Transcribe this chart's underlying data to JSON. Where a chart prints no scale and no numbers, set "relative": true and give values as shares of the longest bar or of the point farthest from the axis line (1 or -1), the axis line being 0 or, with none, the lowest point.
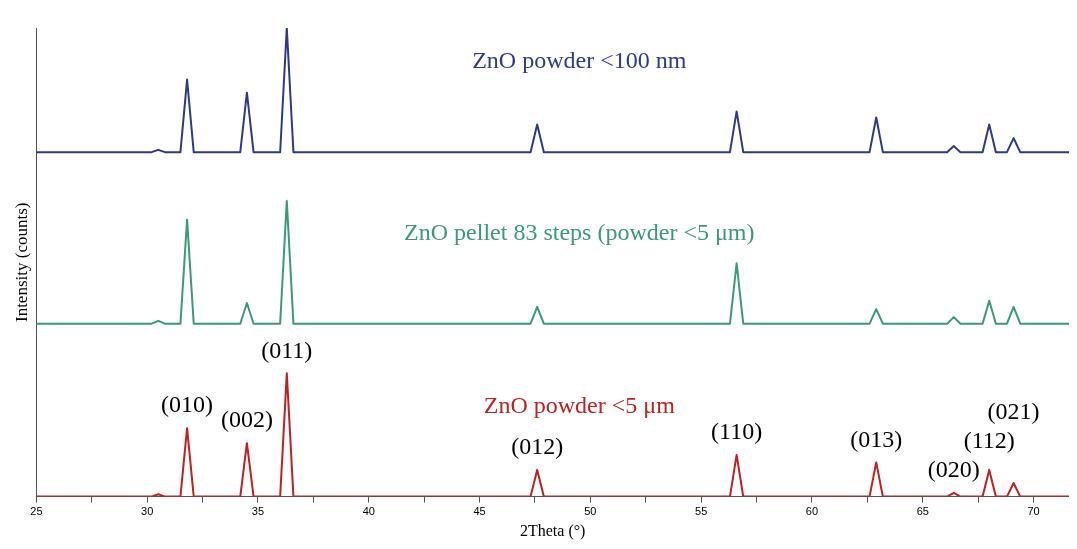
{
  "chart_data": {
    "type": "line",
    "relative": true,
    "xlabel": "2Theta (°)",
    "ylabel": "Intensity (counts)",
    "x": [
      25,
      30.2,
      30.5,
      30.8,
      31.5,
      31.8,
      32.1,
      34.2,
      34.5,
      34.8,
      36.0,
      36.3,
      36.6,
      47.3,
      47.6,
      47.9,
      56.3,
      56.6,
      56.9,
      62.6,
      62.9,
      63.2,
      66.1,
      66.4,
      66.7,
      67.7,
      68.0,
      68.3,
      68.8,
      69.1,
      69.4,
      71.6
    ],
    "xlim": [
      25,
      71.6
    ],
    "xticks": [
      25,
      {
        "value": 27.5,
        "label": null
      },
      30,
      {
        "value": 32.5,
        "label": null
      },
      35,
      {
        "value": 37.5,
        "label": null
      },
      40,
      {
        "value": 42.5,
        "label": null
      },
      45,
      {
        "value": 47.5,
        "label": null
      },
      50,
      {
        "value": 52.5,
        "label": null
      },
      55,
      {
        "value": 57.5,
        "label": null
      },
      60,
      {
        "value": 62.5,
        "label": null
      },
      65,
      {
        "value": 67.5,
        "label": null
      },
      70
    ],
    "series": [
      {
        "name": "ZnO powder <100 nm",
        "color": "#2e3a87",
        "values": [
          0.735,
          0.735,
          0.74,
          0.735,
          0.735,
          0.89,
          0.735,
          0.735,
          0.862,
          0.735,
          0.735,
          1,
          0.735,
          0.735,
          0.794,
          0.735,
          0.735,
          0.822,
          0.735,
          0.735,
          0.809,
          0.735,
          0.735,
          0.748,
          0.735,
          0.735,
          0.794,
          0.735,
          0.735,
          0.765,
          0.735,
          0.735
        ]
      },
      {
        "name": "ZnO pellet 83 steps (powder <5 μm)",
        "color": "#3a9a78",
        "values": [
          0.369,
          0.369,
          0.375,
          0.369,
          0.369,
          0.591,
          0.369,
          0.369,
          0.413,
          0.369,
          0.369,
          0.631,
          0.369,
          0.369,
          0.405,
          0.369,
          0.369,
          0.498,
          0.369,
          0.369,
          0.4,
          0.369,
          0.369,
          0.383,
          0.369,
          0.369,
          0.418,
          0.369,
          0.369,
          0.405,
          0.369,
          0.369
        ]
      },
      {
        "name": "ZnO powder <5 μm",
        "color": "#c0201f",
        "values": [
          0,
          0,
          0.005,
          0,
          0,
          0.146,
          0,
          0,
          0.114,
          0,
          0,
          0.263,
          0,
          0,
          0.057,
          0,
          0,
          0.089,
          0,
          0,
          0.073,
          0,
          0,
          0.008,
          0,
          0,
          0.057,
          0,
          0,
          0.029,
          0,
          0
        ]
      }
    ],
    "annotations": [
      {
        "text": "(010)",
        "x": 31.8,
        "y": 0.146
      },
      {
        "text": "(002)",
        "x": 34.5,
        "y": 0.114
      },
      {
        "text": "(011)",
        "x": 36.3,
        "y": 0.263
      },
      {
        "text": "(012)",
        "x": 47.6,
        "y": 0.057
      },
      {
        "text": "(110)",
        "x": 56.6,
        "y": 0.089
      },
      {
        "text": "(013)",
        "x": 62.9,
        "y": 0.073
      },
      {
        "text": "(020)",
        "x": 66.4,
        "y": 0.008
      },
      {
        "text": "(112)",
        "x": 68.0,
        "y": 0.057
      },
      {
        "text": "(021)",
        "x": 69.1,
        "y": 0.029
      }
    ],
    "grid": false,
    "legend": false,
    "marker": "none",
    "line_style": "solid"
  }
}
